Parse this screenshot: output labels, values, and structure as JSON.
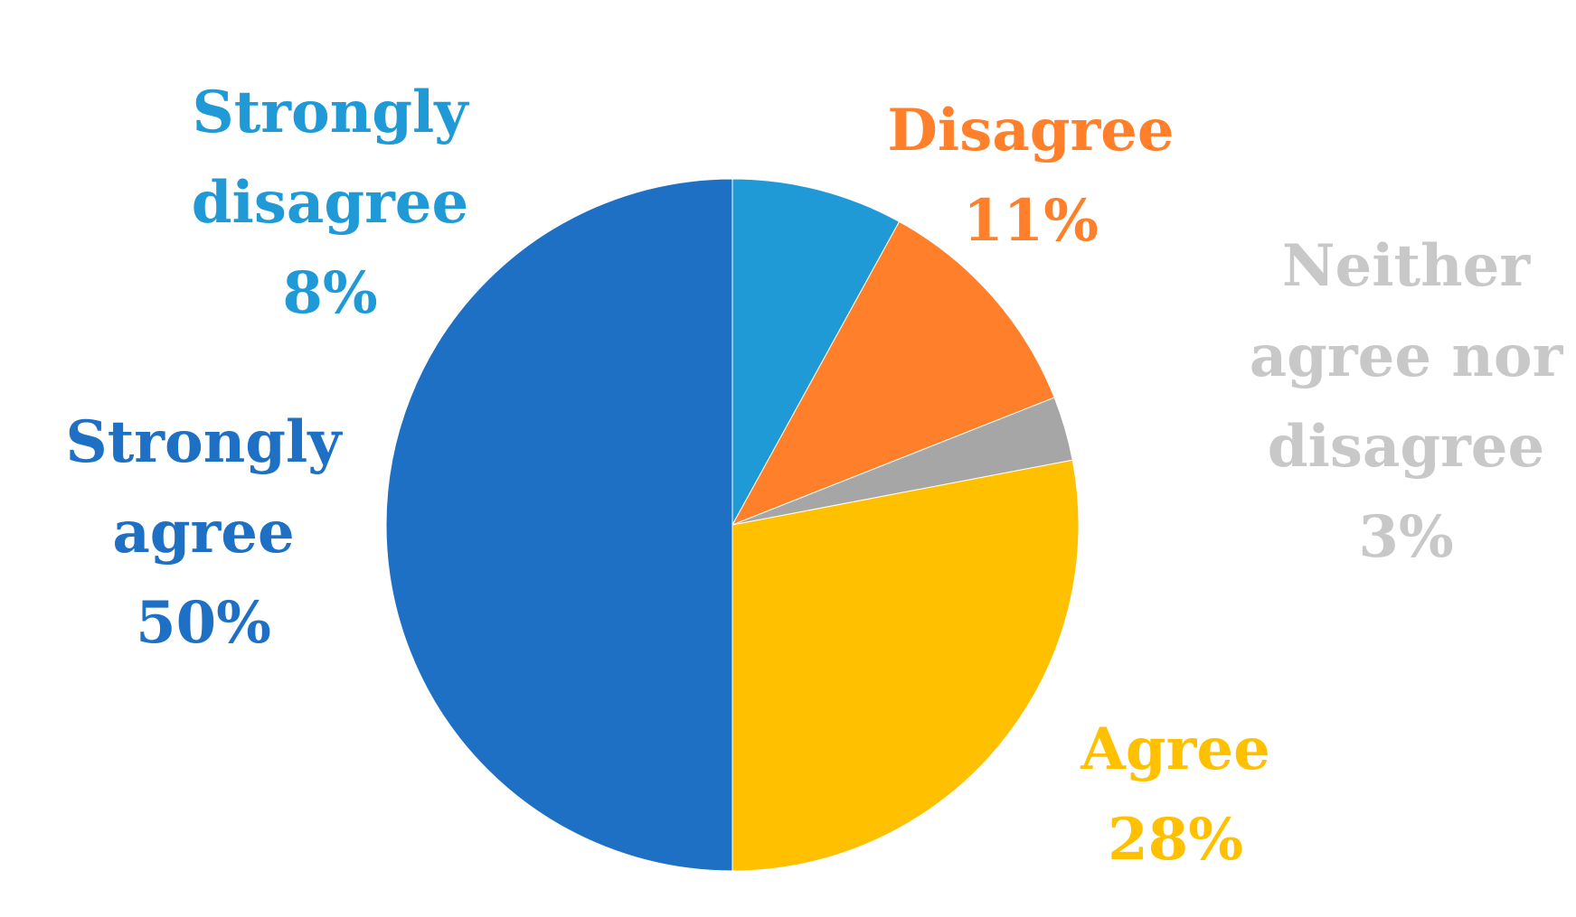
{
  "chart_data": {
    "type": "pie",
    "title": "",
    "start_angle_deg": 0,
    "direction": "clockwise",
    "slices": [
      {
        "label_lines": [
          "Strongly",
          "disagree"
        ],
        "value": 8,
        "value_label": "8%",
        "color": "#1F9AD6",
        "label_color": "#1F9AD6"
      },
      {
        "label_lines": [
          "Disagree"
        ],
        "value": 11,
        "value_label": "11%",
        "color": "#FF7F2A",
        "label_color": "#FF7F2A"
      },
      {
        "label_lines": [
          "Neither",
          "agree nor",
          "disagree"
        ],
        "value": 3,
        "value_label": "3%",
        "color": "#A6A6A6",
        "label_color": "#C8C8C8"
      },
      {
        "label_lines": [
          "Agree"
        ],
        "value": 28,
        "value_label": "28%",
        "color": "#FFC000",
        "label_color": "#FFC000"
      },
      {
        "label_lines": [
          "Strongly",
          "agree"
        ],
        "value": 50,
        "value_label": "50%",
        "color": "#1E70C4",
        "label_color": "#1E70C4"
      }
    ]
  }
}
